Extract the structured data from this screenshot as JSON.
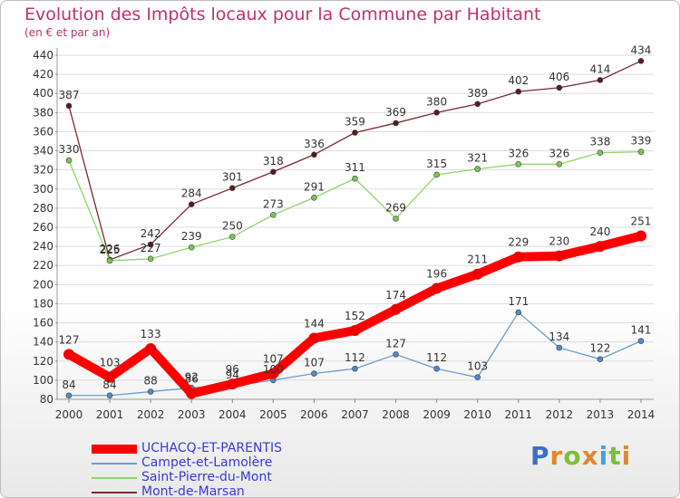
{
  "header": {
    "title": "Evolution des Impôts locaux pour la Commune par Habitant",
    "subtitle": "(en € et par an)"
  },
  "brand": {
    "letters": [
      "P",
      "r",
      "o",
      "x",
      "i",
      "t",
      "i"
    ],
    "colors": [
      "#3a6fc4",
      "#e0892a",
      "#7cbf3a",
      "#e0892a",
      "#4aa0d8",
      "#7cbf3a",
      "#e0892a"
    ]
  },
  "chart_data": {
    "type": "line",
    "title": "Evolution des Impôts locaux pour la Commune par Habitant",
    "subtitle": "(en € et par an)",
    "xlabel": "",
    "ylabel": "",
    "x": [
      "2000",
      "2001",
      "2002",
      "2003",
      "2004",
      "2005",
      "2006",
      "2007",
      "2008",
      "2009",
      "2010",
      "2011",
      "2012",
      "2013",
      "2014"
    ],
    "ylim": [
      80,
      440
    ],
    "yticks": [
      80,
      100,
      120,
      140,
      160,
      180,
      200,
      220,
      240,
      260,
      280,
      300,
      320,
      340,
      360,
      380,
      400,
      420,
      440
    ],
    "grid": true,
    "legend_position": "bottom-left",
    "series": [
      {
        "name": "Mont-de-Marsan",
        "color": "#7a2a35",
        "point_color": "#5a1a22",
        "thick": false,
        "values": [
          387,
          226,
          242,
          284,
          301,
          318,
          336,
          359,
          369,
          380,
          389,
          402,
          406,
          414,
          434
        ]
      },
      {
        "name": "Saint-Pierre-du-Mont",
        "color": "#8fd46a",
        "point_color": "#7ac64f",
        "thick": false,
        "values": [
          330,
          225,
          227,
          239,
          250,
          273,
          291,
          311,
          269,
          315,
          321,
          326,
          326,
          338,
          339
        ]
      },
      {
        "name": "Campet-et-Lamolère",
        "color": "#6a9ccf",
        "point_color": "#4f8bc9",
        "thick": false,
        "values": [
          84,
          84,
          88,
          92,
          94,
          100,
          107,
          112,
          127,
          112,
          103,
          171,
          134,
          122,
          141
        ]
      },
      {
        "name": "UCHACQ-ET-PARENTIS",
        "color": "#ff0000",
        "point_color": "#ee0000",
        "thick": true,
        "values": [
          127,
          103,
          133,
          86,
          96,
          107,
          144,
          152,
          174,
          196,
          211,
          229,
          230,
          240,
          251
        ]
      }
    ],
    "labels": [
      {
        "series": "Mont-de-Marsan",
        "text": [
          "387",
          "226",
          "242",
          "284",
          "301",
          "318",
          "336",
          "359",
          "369",
          "380",
          "389",
          "402",
          "406",
          "414",
          "434"
        ]
      },
      {
        "series": "Saint-Pierre-du-Mont",
        "text": [
          "330",
          "225",
          "227",
          "239",
          "250",
          "273",
          "291",
          "311",
          "269",
          "315",
          "321",
          "326",
          "326",
          "338",
          "339"
        ]
      },
      {
        "series": "Campet-et-Lamolère",
        "text": [
          "84",
          "84",
          "88",
          "92",
          "94",
          "100",
          "107",
          "112",
          "127",
          "112",
          "103",
          "171",
          "134",
          "122",
          "141"
        ]
      },
      {
        "series": "UCHACQ-ET-PARENTIS",
        "text": [
          "127",
          "103",
          "133",
          "86",
          "96",
          "107",
          "144",
          "152",
          "174",
          "196",
          "211",
          "229",
          "230",
          "240",
          "251"
        ]
      }
    ]
  },
  "legend": {
    "items": [
      {
        "label": "UCHACQ-ET-PARENTIS",
        "color": "#ff0000",
        "text_color": "#3a3ad8"
      },
      {
        "label": "Campet-et-Lamolère",
        "color": "#6a9ccf",
        "text_color": "#3a3ad8"
      },
      {
        "label": "Saint-Pierre-du-Mont",
        "color": "#8fd46a",
        "text_color": "#3a3ad8"
      },
      {
        "label": "Mont-de-Marsan",
        "color": "#7a2a35",
        "text_color": "#3a3ad8"
      }
    ]
  }
}
